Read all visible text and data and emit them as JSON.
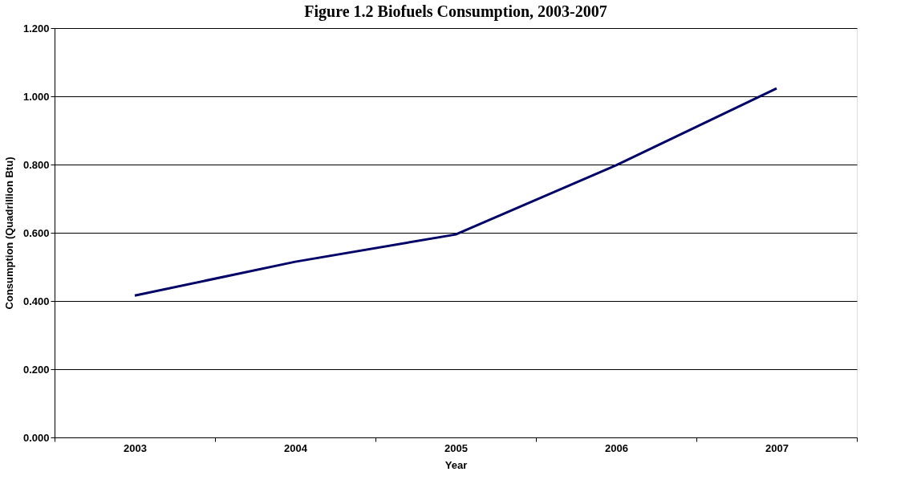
{
  "chart_data": {
    "type": "line",
    "title": "Figure 1.2 Biofuels Consumption, 2003-2007",
    "xlabel": "Year",
    "ylabel": "Consumption (Quadrillion Btu)",
    "categories": [
      "2003",
      "2004",
      "2005",
      "2006",
      "2007"
    ],
    "series": [
      {
        "color": "#000066",
        "values": [
          0.416,
          0.515,
          0.595,
          0.798,
          1.023
        ]
      }
    ],
    "ylim": [
      0,
      1.2
    ],
    "yticks": [
      {
        "value": 0,
        "label": "0.000"
      },
      {
        "value": 0.2,
        "label": "0.200"
      },
      {
        "value": 0.4,
        "label": "0.400"
      },
      {
        "value": 0.6,
        "label": "0.600"
      },
      {
        "value": 0.8,
        "label": "0.800"
      },
      {
        "value": 1.0,
        "label": "1.000"
      },
      {
        "value": 1.2,
        "label": "1.200"
      }
    ],
    "grid": "y",
    "marker": "none",
    "line_style": "solid"
  }
}
